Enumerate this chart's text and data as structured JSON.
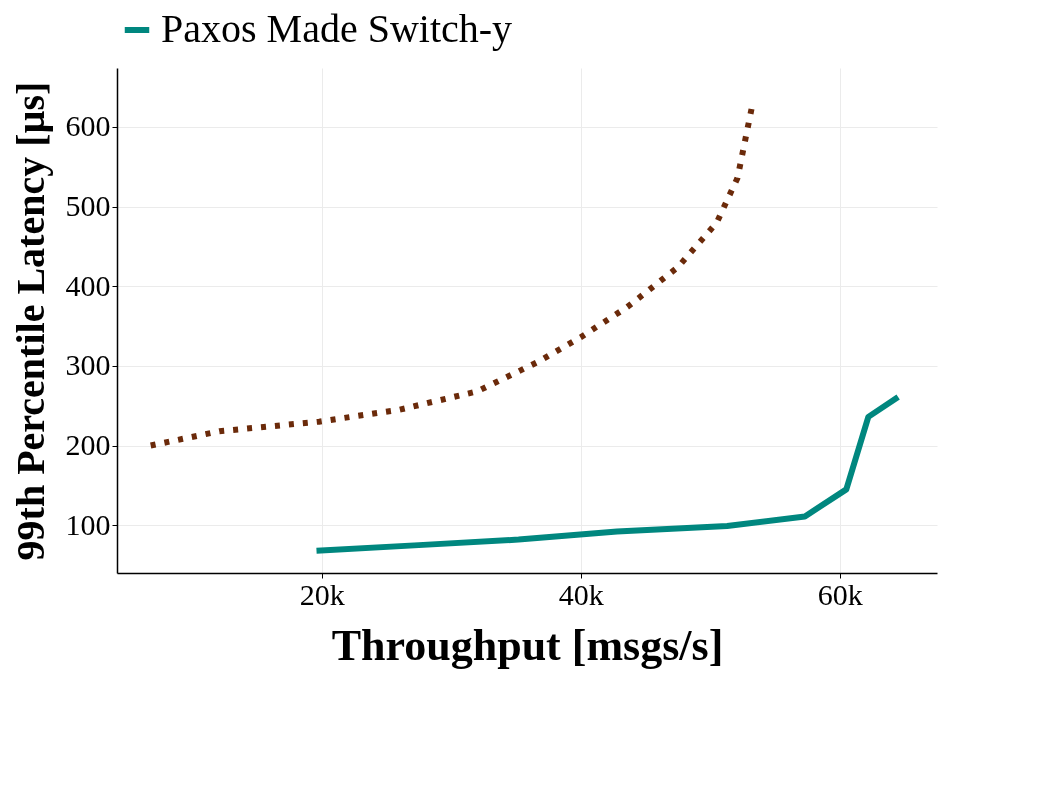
{
  "chart_data": {
    "type": "line",
    "xlabel": "Throughput [msgs/s]",
    "ylabel": "99th Percentile Latency [µs]",
    "xlim": [
      4200,
      67500
    ],
    "ylim": [
      40,
      674
    ],
    "xticks": [
      {
        "value": 20000,
        "label": "20k"
      },
      {
        "value": 40000,
        "label": "40k"
      },
      {
        "value": 60000,
        "label": "60k"
      }
    ],
    "yticks": [
      100,
      200,
      300,
      400,
      500,
      600
    ],
    "grid": true,
    "legend": "top",
    "series": [
      {
        "color": "#6b2a0a",
        "line_style": "dotted",
        "x": [
          6800,
          12100,
          19800,
          26000,
          32000,
          36700,
          40000,
          43600,
          47500,
          50500,
          52100,
          53200
        ],
        "values": [
          200,
          218,
          230,
          245,
          268,
          305,
          336,
          374,
          424,
          480,
          536,
          624
        ]
      },
      {
        "name": "Paxos Made Switch-y",
        "color": "#00877f",
        "line_style": "solid",
        "x": [
          19600,
          27500,
          35200,
          42800,
          51300,
          57300,
          60500,
          62200,
          64500
        ],
        "values": [
          68,
          75,
          82,
          92,
          99,
          111,
          145,
          236,
          261
        ]
      }
    ]
  }
}
